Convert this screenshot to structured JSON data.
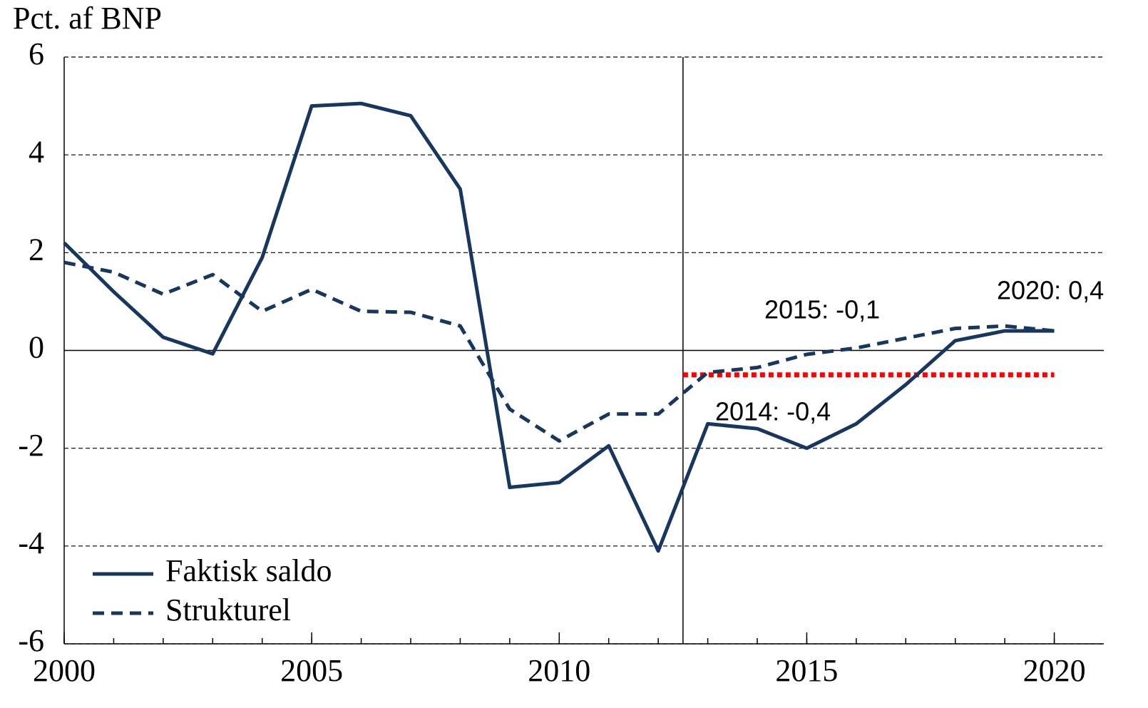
{
  "chart_data": {
    "type": "line",
    "y_label": "Pct. af BNP",
    "x": [
      2000,
      2001,
      2002,
      2003,
      2004,
      2005,
      2006,
      2007,
      2008,
      2009,
      2010,
      2011,
      2012,
      2013,
      2014,
      2015,
      2016,
      2017,
      2018,
      2019,
      2020
    ],
    "series": [
      {
        "name": "Faktisk saldo",
        "color": "#17375e",
        "line_style": "solid",
        "values": [
          2.2,
          1.2,
          0.27,
          -0.07,
          1.9,
          5.0,
          5.05,
          4.8,
          3.3,
          -2.8,
          -2.7,
          -1.95,
          -4.1,
          -1.5,
          -1.6,
          -2.0,
          -1.5,
          -0.7,
          0.2,
          0.4,
          0.4
        ]
      },
      {
        "name": "Strukturel",
        "color": "#17375e",
        "line_style": "dashed",
        "values": [
          1.8,
          1.6,
          1.15,
          1.55,
          0.8,
          1.25,
          0.8,
          0.78,
          0.5,
          -1.2,
          -1.85,
          -1.3,
          -1.3,
          -0.45,
          -0.35,
          -0.08,
          0.05,
          0.25,
          0.45,
          0.5,
          0.4
        ]
      }
    ],
    "reference_line": {
      "value": -0.5,
      "x": [
        2012.5,
        2020
      ],
      "color": "#ff0000"
    },
    "vline": 2012.5,
    "annotations": [
      "2015: -0,1",
      "2014: -0,4",
      "2020: 0,4"
    ],
    "xlim": [
      2000,
      2021
    ],
    "xticks": [
      2000,
      2005,
      2010,
      2015,
      2020
    ],
    "ylim": [
      -6,
      6
    ],
    "yticks": [
      -6,
      -4,
      -2,
      0,
      2,
      4,
      6
    ],
    "grid": true,
    "legend": "lower left"
  }
}
